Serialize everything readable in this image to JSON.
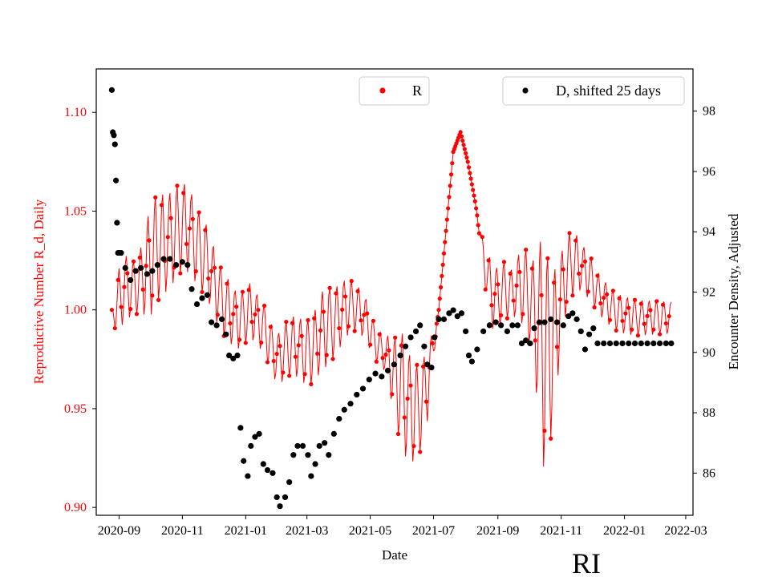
{
  "chart_data": {
    "type": "scatter",
    "state_label": "RI",
    "xlabel": "Date",
    "ylabel_left": "Reproductive Number R_d, Daily",
    "ylabel_right": "Encounter Density, Adjusted",
    "x_ticks": [
      "2020-09",
      "2020-11",
      "2021-01",
      "2021-03",
      "2021-05",
      "2021-07",
      "2021-09",
      "2021-11",
      "2022-01",
      "2022-03"
    ],
    "x_range": [
      "2020-08-10",
      "2022-03-08"
    ],
    "y_left_ticks": [
      "0.90",
      "0.95",
      "1.00",
      "1.05",
      "1.10"
    ],
    "y_left_range": [
      0.896,
      1.122
    ],
    "y_right_ticks": [
      "86",
      "88",
      "90",
      "92",
      "94",
      "96",
      "98"
    ],
    "y_right_range": [
      84.6,
      99.4
    ],
    "grid": false,
    "colors": {
      "r_series": "#ff0000",
      "d_series": "#000000",
      "left_axis_text": "#ff0000",
      "right_axis_text": "#000000"
    },
    "legend_r": {
      "label": "R",
      "placement": "top-center"
    },
    "legend_d": {
      "label": "D, shifted 25 days",
      "placement": "top-right"
    },
    "series_r": {
      "name": "R",
      "points": [
        [
          "2020-08-25",
          0.996
        ],
        [
          "2020-09-01",
          1.005
        ],
        [
          "2020-09-08",
          1.012
        ],
        [
          "2020-09-15",
          1.01
        ],
        [
          "2020-09-22",
          1.015
        ],
        [
          "2020-09-29",
          1.022
        ],
        [
          "2020-10-06",
          1.03
        ],
        [
          "2020-10-13",
          1.033
        ],
        [
          "2020-10-20",
          1.035
        ],
        [
          "2020-10-27",
          1.04
        ],
        [
          "2020-11-03",
          1.042
        ],
        [
          "2020-11-10",
          1.038
        ],
        [
          "2020-11-17",
          1.03
        ],
        [
          "2020-11-24",
          1.025
        ],
        [
          "2020-12-01",
          1.015
        ],
        [
          "2020-12-08",
          1.005
        ],
        [
          "2020-12-15",
          1.0
        ],
        [
          "2020-12-22",
          0.995
        ],
        [
          "2020-12-29",
          0.995
        ],
        [
          "2021-01-05",
          1.0
        ],
        [
          "2021-01-12",
          0.995
        ],
        [
          "2021-01-19",
          0.99
        ],
        [
          "2021-01-26",
          0.98
        ],
        [
          "2021-02-02",
          0.975
        ],
        [
          "2021-02-09",
          0.98
        ],
        [
          "2021-02-16",
          0.982
        ],
        [
          "2021-02-23",
          0.98
        ],
        [
          "2021-03-02",
          0.978
        ],
        [
          "2021-03-09",
          0.982
        ],
        [
          "2021-03-16",
          0.99
        ],
        [
          "2021-03-23",
          0.992
        ],
        [
          "2021-03-30",
          0.995
        ],
        [
          "2021-04-06",
          1.0
        ],
        [
          "2021-04-13",
          1.002
        ],
        [
          "2021-04-20",
          1.0
        ],
        [
          "2021-04-27",
          0.995
        ],
        [
          "2021-05-04",
          0.985
        ],
        [
          "2021-05-11",
          0.98
        ],
        [
          "2021-05-18",
          0.975
        ],
        [
          "2021-05-25",
          0.965
        ],
        [
          "2021-06-01",
          0.958
        ],
        [
          "2021-06-08",
          0.95
        ],
        [
          "2021-06-15",
          0.948
        ],
        [
          "2021-06-22",
          0.955
        ],
        [
          "2021-06-29",
          0.975
        ],
        [
          "2021-07-06",
          1.0
        ],
        [
          "2021-07-13",
          1.04
        ],
        [
          "2021-07-20",
          1.08
        ],
        [
          "2021-07-27",
          1.09
        ],
        [
          "2021-08-03",
          1.075
        ],
        [
          "2021-08-10",
          1.055
        ],
        [
          "2021-08-17",
          1.03
        ],
        [
          "2021-08-24",
          1.01
        ],
        [
          "2021-08-31",
          1.005
        ],
        [
          "2021-09-07",
          1.01
        ],
        [
          "2021-09-14",
          1.008
        ],
        [
          "2021-09-21",
          1.012
        ],
        [
          "2021-09-28",
          1.01
        ],
        [
          "2021-10-05",
          1.0
        ],
        [
          "2021-10-12",
          0.985
        ],
        [
          "2021-10-19",
          0.975
        ],
        [
          "2021-10-26",
          0.985
        ],
        [
          "2021-11-02",
          1.01
        ],
        [
          "2021-11-09",
          1.022
        ],
        [
          "2021-11-16",
          1.024
        ],
        [
          "2021-11-23",
          1.02
        ],
        [
          "2021-11-30",
          1.015
        ],
        [
          "2021-12-07",
          1.008
        ],
        [
          "2021-12-14",
          1.004
        ],
        [
          "2021-12-21",
          1.0
        ],
        [
          "2021-12-28",
          0.998
        ],
        [
          "2022-01-04",
          0.997
        ],
        [
          "2022-01-11",
          0.996
        ],
        [
          "2022-01-18",
          0.996
        ],
        [
          "2022-01-25",
          0.996
        ],
        [
          "2022-02-01",
          0.996
        ],
        [
          "2022-02-08",
          0.996
        ],
        [
          "2022-02-15",
          0.996
        ]
      ],
      "amplitude": [
        [
          "2020-08-25",
          0.004
        ],
        [
          "2020-09-01",
          0.016
        ],
        [
          "2020-09-20",
          0.014
        ],
        [
          "2020-10-01",
          0.028
        ],
        [
          "2020-10-15",
          0.025
        ],
        [
          "2020-11-01",
          0.022
        ],
        [
          "2020-11-25",
          0.018
        ],
        [
          "2020-12-20",
          0.015
        ],
        [
          "2021-01-20",
          0.012
        ],
        [
          "2021-02-20",
          0.015
        ],
        [
          "2021-03-20",
          0.02
        ],
        [
          "2021-04-15",
          0.012
        ],
        [
          "2021-05-15",
          0.008
        ],
        [
          "2021-06-01",
          0.03
        ],
        [
          "2021-06-25",
          0.02
        ],
        [
          "2021-07-05",
          0.0
        ],
        [
          "2021-08-12",
          0.0
        ],
        [
          "2021-08-25",
          0.018
        ],
        [
          "2021-09-15",
          0.012
        ],
        [
          "2021-10-05",
          0.025
        ],
        [
          "2021-10-15",
          0.06
        ],
        [
          "2021-11-02",
          0.02
        ],
        [
          "2021-11-20",
          0.012
        ],
        [
          "2021-12-10",
          0.01
        ],
        [
          "2022-02-15",
          0.008
        ]
      ]
    },
    "series_d": {
      "name": "D, shifted 25 days",
      "points": [
        [
          "2020-08-25",
          98.7
        ],
        [
          "2020-08-26",
          97.3
        ],
        [
          "2020-08-27",
          97.2
        ],
        [
          "2020-08-28",
          96.9
        ],
        [
          "2020-08-29",
          95.7
        ],
        [
          "2020-08-30",
          94.3
        ],
        [
          "2020-08-31",
          93.3
        ],
        [
          "2020-09-01",
          93.3
        ],
        [
          "2020-09-03",
          93.3
        ],
        [
          "2020-09-07",
          92.8
        ],
        [
          "2020-09-12",
          92.4
        ],
        [
          "2020-09-17",
          92.7
        ],
        [
          "2020-09-22",
          92.8
        ],
        [
          "2020-09-28",
          92.6
        ],
        [
          "2020-10-03",
          92.7
        ],
        [
          "2020-10-08",
          92.9
        ],
        [
          "2020-10-14",
          93.1
        ],
        [
          "2020-10-20",
          93.1
        ],
        [
          "2020-10-26",
          92.9
        ],
        [
          "2020-11-01",
          93.0
        ],
        [
          "2020-11-06",
          92.9
        ],
        [
          "2020-11-10",
          92.1
        ],
        [
          "2020-11-15",
          91.6
        ],
        [
          "2020-11-20",
          91.8
        ],
        [
          "2020-11-25",
          91.9
        ],
        [
          "2020-11-29",
          91.0
        ],
        [
          "2020-12-04",
          90.9
        ],
        [
          "2020-12-09",
          91.1
        ],
        [
          "2020-12-13",
          90.6
        ],
        [
          "2020-12-16",
          89.9
        ],
        [
          "2020-12-20",
          89.8
        ],
        [
          "2020-12-24",
          89.9
        ],
        [
          "2020-12-27",
          87.5
        ],
        [
          "2020-12-30",
          86.4
        ],
        [
          "2021-01-03",
          85.9
        ],
        [
          "2021-01-06",
          86.9
        ],
        [
          "2021-01-10",
          87.2
        ],
        [
          "2021-01-14",
          87.3
        ],
        [
          "2021-01-18",
          86.3
        ],
        [
          "2021-01-22",
          86.1
        ],
        [
          "2021-01-27",
          86.0
        ],
        [
          "2021-01-31",
          85.2
        ],
        [
          "2021-02-03",
          84.9
        ],
        [
          "2021-02-08",
          85.2
        ],
        [
          "2021-02-12",
          85.7
        ],
        [
          "2021-02-16",
          86.6
        ],
        [
          "2021-02-20",
          86.9
        ],
        [
          "2021-02-25",
          86.9
        ],
        [
          "2021-03-02",
          86.6
        ],
        [
          "2021-03-05",
          85.9
        ],
        [
          "2021-03-09",
          86.3
        ],
        [
          "2021-03-13",
          86.9
        ],
        [
          "2021-03-18",
          87.0
        ],
        [
          "2021-03-22",
          86.6
        ],
        [
          "2021-03-27",
          87.3
        ],
        [
          "2021-04-01",
          87.8
        ],
        [
          "2021-04-06",
          88.1
        ],
        [
          "2021-04-12",
          88.3
        ],
        [
          "2021-04-18",
          88.6
        ],
        [
          "2021-04-24",
          88.8
        ],
        [
          "2021-04-30",
          89.1
        ],
        [
          "2021-05-06",
          89.3
        ],
        [
          "2021-05-12",
          89.2
        ],
        [
          "2021-05-18",
          89.4
        ],
        [
          "2021-05-24",
          89.6
        ],
        [
          "2021-05-30",
          89.9
        ],
        [
          "2021-06-04",
          90.2
        ],
        [
          "2021-06-09",
          90.5
        ],
        [
          "2021-06-14",
          90.7
        ],
        [
          "2021-06-18",
          90.9
        ],
        [
          "2021-06-22",
          90.2
        ],
        [
          "2021-06-25",
          89.6
        ],
        [
          "2021-06-29",
          89.5
        ],
        [
          "2021-07-02",
          90.5
        ],
        [
          "2021-07-06",
          91.1
        ],
        [
          "2021-07-11",
          91.1
        ],
        [
          "2021-07-16",
          91.3
        ],
        [
          "2021-07-20",
          91.4
        ],
        [
          "2021-07-24",
          91.2
        ],
        [
          "2021-07-28",
          91.3
        ],
        [
          "2021-08-01",
          90.7
        ],
        [
          "2021-08-04",
          89.9
        ],
        [
          "2021-08-07",
          89.7
        ],
        [
          "2021-08-12",
          90.1
        ],
        [
          "2021-08-18",
          90.7
        ],
        [
          "2021-08-24",
          90.9
        ],
        [
          "2021-08-30",
          91.0
        ],
        [
          "2021-09-04",
          90.9
        ],
        [
          "2021-09-10",
          90.7
        ],
        [
          "2021-09-15",
          90.9
        ],
        [
          "2021-09-20",
          90.9
        ],
        [
          "2021-09-24",
          90.3
        ],
        [
          "2021-09-28",
          90.4
        ],
        [
          "2021-10-02",
          90.3
        ],
        [
          "2021-10-06",
          90.8
        ],
        [
          "2021-10-11",
          91.0
        ],
        [
          "2021-10-16",
          91.0
        ],
        [
          "2021-10-22",
          91.1
        ],
        [
          "2021-10-28",
          91.0
        ],
        [
          "2021-11-03",
          90.9
        ],
        [
          "2021-11-08",
          91.2
        ],
        [
          "2021-11-12",
          91.3
        ],
        [
          "2021-11-16",
          91.1
        ],
        [
          "2021-11-20",
          90.7
        ],
        [
          "2021-11-24",
          90.1
        ],
        [
          "2021-11-28",
          90.6
        ],
        [
          "2021-12-02",
          90.8
        ],
        [
          "2021-12-06",
          90.3
        ],
        [
          "2021-12-12",
          90.3
        ],
        [
          "2021-12-18",
          90.3
        ],
        [
          "2021-12-24",
          90.3
        ],
        [
          "2021-12-30",
          90.3
        ],
        [
          "2022-01-05",
          90.3
        ],
        [
          "2022-01-11",
          90.3
        ],
        [
          "2022-01-17",
          90.3
        ],
        [
          "2022-01-23",
          90.3
        ],
        [
          "2022-01-29",
          90.3
        ],
        [
          "2022-02-04",
          90.3
        ],
        [
          "2022-02-10",
          90.3
        ],
        [
          "2022-02-15",
          90.3
        ]
      ]
    }
  }
}
